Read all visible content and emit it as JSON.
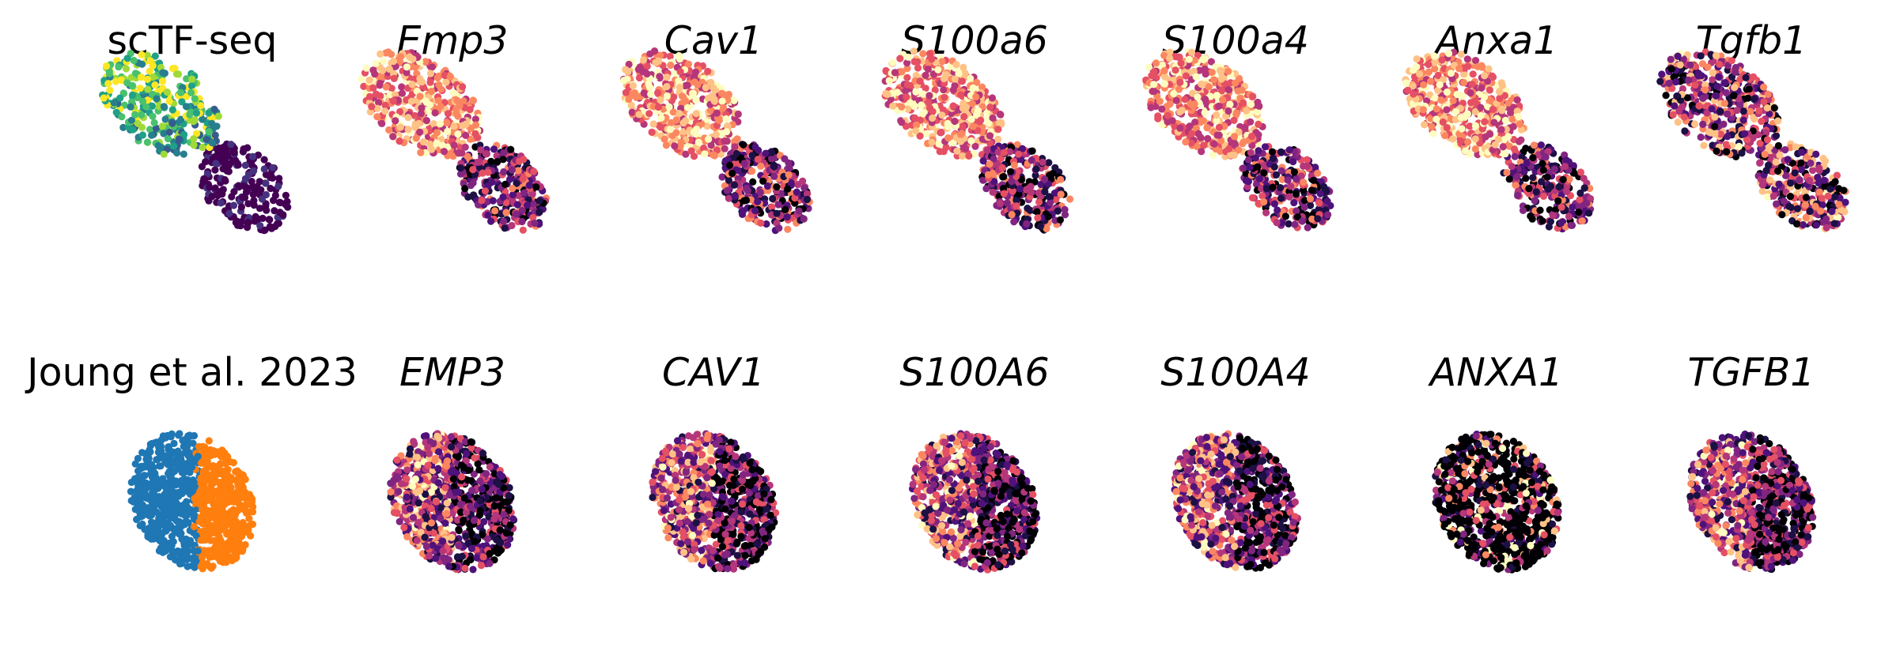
{
  "chart_data": {
    "type": "scatter",
    "grid": false,
    "axes_visible": false,
    "rows": [
      {
        "panels": [
          {
            "title": "scTF-seq",
            "italic": false,
            "color_mode": "continuous",
            "colormap": "viridis",
            "n_points": 520
          },
          {
            "title": "Emp3",
            "italic": true,
            "color_mode": "continuous",
            "colormap": "magma",
            "n_points": 720
          },
          {
            "title": "Cav1",
            "italic": true,
            "color_mode": "continuous",
            "colormap": "magma",
            "n_points": 720
          },
          {
            "title": "S100a6",
            "italic": true,
            "color_mode": "continuous",
            "colormap": "magma",
            "n_points": 720
          },
          {
            "title": "S100a4",
            "italic": true,
            "color_mode": "continuous",
            "colormap": "magma",
            "n_points": 720
          },
          {
            "title": "Anxa1",
            "italic": true,
            "color_mode": "continuous",
            "colormap": "magma",
            "n_points": 720
          },
          {
            "title": "Tgfb1",
            "italic": true,
            "color_mode": "continuous",
            "colormap": "magma",
            "n_points": 720
          }
        ]
      },
      {
        "panels": [
          {
            "title": "Joung et al. 2023",
            "italic": false,
            "color_mode": "categorical",
            "categories": 2,
            "category_colors": [
              "#1f77b4",
              "#ff7f0e"
            ],
            "n_points": 900
          },
          {
            "title": "EMP3",
            "italic": true,
            "color_mode": "continuous",
            "colormap": "magma",
            "n_points": 900
          },
          {
            "title": "CAV1",
            "italic": true,
            "color_mode": "continuous",
            "colormap": "magma",
            "n_points": 900
          },
          {
            "title": "S100A6",
            "italic": true,
            "color_mode": "continuous",
            "colormap": "magma",
            "n_points": 900
          },
          {
            "title": "S100A4",
            "italic": true,
            "color_mode": "continuous",
            "colormap": "magma",
            "n_points": 900
          },
          {
            "title": "ANXA1",
            "italic": true,
            "color_mode": "continuous",
            "colormap": "magma",
            "n_points": 900
          },
          {
            "title": "TGFB1",
            "italic": true,
            "color_mode": "continuous",
            "colormap": "magma",
            "n_points": 900
          }
        ]
      }
    ]
  }
}
